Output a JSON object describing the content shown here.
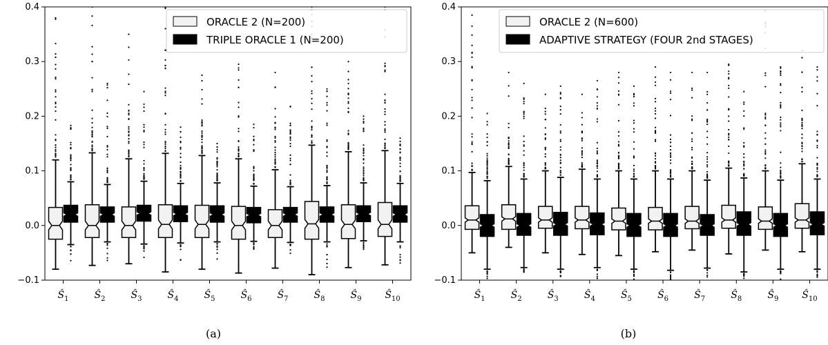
{
  "chart_data": [
    {
      "type": "box",
      "caption": "(a)",
      "categories": [
        "S1",
        "S2",
        "S3",
        "S4",
        "S5",
        "S6",
        "S7",
        "S8",
        "S9",
        "S10"
      ],
      "category_symbol": "Ŝ",
      "category_subscripts": [
        "1",
        "2",
        "3",
        "4",
        "5",
        "6",
        "7",
        "8",
        "9",
        "10"
      ],
      "ylim": [
        -0.1,
        0.4
      ],
      "yticks": [
        -0.1,
        0.0,
        0.1,
        0.2,
        0.3,
        0.4
      ],
      "ytick_labels": [
        "−0.1",
        "0.0",
        "0.1",
        "0.2",
        "0.3",
        "0.4"
      ],
      "legend_position": "top-right",
      "series": [
        {
          "name": "ORACLE 2 (N=200)",
          "fill": "#f2f2f2",
          "boxes": [
            {
              "q1": -0.025,
              "median": 0.0,
              "q3": 0.033,
              "whisker_low": -0.08,
              "whisker_high": 0.12,
              "outlier_max": 0.38,
              "notch": 0.008
            },
            {
              "q1": -0.022,
              "median": 0.0,
              "q3": 0.038,
              "whisker_low": -0.073,
              "whisker_high": 0.133,
              "outlier_max": 0.4,
              "notch": 0.008
            },
            {
              "q1": -0.022,
              "median": 0.0,
              "q3": 0.034,
              "whisker_low": -0.07,
              "whisker_high": 0.122,
              "outlier_max": 0.35,
              "notch": 0.008
            },
            {
              "q1": -0.022,
              "median": 0.002,
              "q3": 0.038,
              "whisker_low": -0.085,
              "whisker_high": 0.132,
              "outlier_max": 0.4,
              "notch": 0.008
            },
            {
              "q1": -0.022,
              "median": 0.002,
              "q3": 0.037,
              "whisker_low": -0.08,
              "whisker_high": 0.128,
              "outlier_max": 0.275,
              "notch": 0.008
            },
            {
              "q1": -0.025,
              "median": 0.0,
              "q3": 0.035,
              "whisker_low": -0.087,
              "whisker_high": 0.122,
              "outlier_max": 0.295,
              "notch": 0.008
            },
            {
              "q1": -0.022,
              "median": 0.0,
              "q3": 0.029,
              "whisker_low": -0.078,
              "whisker_high": 0.102,
              "outlier_max": 0.28,
              "notch": 0.008
            },
            {
              "q1": -0.025,
              "median": 0.003,
              "q3": 0.044,
              "whisker_low": -0.09,
              "whisker_high": 0.147,
              "outlier_max": 0.4,
              "notch": 0.008
            },
            {
              "q1": -0.024,
              "median": 0.002,
              "q3": 0.038,
              "whisker_low": -0.077,
              "whisker_high": 0.135,
              "outlier_max": 0.3,
              "notch": 0.008
            },
            {
              "q1": -0.02,
              "median": 0.002,
              "q3": 0.042,
              "whisker_low": -0.072,
              "whisker_high": 0.137,
              "outlier_max": 0.4,
              "notch": 0.008
            }
          ]
        },
        {
          "name": "TRIPLE ORACLE 1 (N=200)",
          "fill": "#000000",
          "boxes": [
            {
              "q1": 0.006,
              "median": 0.02,
              "q3": 0.037,
              "whisker_low": -0.035,
              "whisker_high": 0.08,
              "outlier_max": 0.183,
              "outlier_min": -0.07,
              "notch": 0.003
            },
            {
              "q1": 0.006,
              "median": 0.02,
              "q3": 0.034,
              "whisker_low": -0.03,
              "whisker_high": 0.075,
              "outlier_max": 0.26,
              "outlier_min": -0.07,
              "notch": 0.003
            },
            {
              "q1": 0.008,
              "median": 0.022,
              "q3": 0.037,
              "whisker_low": -0.034,
              "whisker_high": 0.081,
              "outlier_max": 0.245,
              "outlier_min": -0.06,
              "notch": 0.003
            },
            {
              "q1": 0.007,
              "median": 0.021,
              "q3": 0.036,
              "whisker_low": -0.032,
              "whisker_high": 0.077,
              "outlier_max": 0.18,
              "outlier_min": -0.075,
              "notch": 0.003
            },
            {
              "q1": 0.006,
              "median": 0.02,
              "q3": 0.036,
              "whisker_low": -0.03,
              "whisker_high": 0.078,
              "outlier_max": 0.15,
              "outlier_min": -0.065,
              "notch": 0.003
            },
            {
              "q1": 0.005,
              "median": 0.019,
              "q3": 0.033,
              "whisker_low": -0.029,
              "whisker_high": 0.072,
              "outlier_max": 0.185,
              "outlier_min": -0.06,
              "notch": 0.003
            },
            {
              "q1": 0.006,
              "median": 0.02,
              "q3": 0.033,
              "whisker_low": -0.031,
              "whisker_high": 0.071,
              "outlier_max": 0.218,
              "outlier_min": -0.055,
              "notch": 0.003
            },
            {
              "q1": 0.006,
              "median": 0.02,
              "q3": 0.034,
              "whisker_low": -0.03,
              "whisker_high": 0.073,
              "outlier_max": 0.25,
              "outlier_min": -0.08,
              "notch": 0.003
            },
            {
              "q1": 0.007,
              "median": 0.021,
              "q3": 0.036,
              "whisker_low": -0.028,
              "whisker_high": 0.078,
              "outlier_max": 0.2,
              "outlier_min": -0.065,
              "notch": 0.003
            },
            {
              "q1": 0.006,
              "median": 0.02,
              "q3": 0.036,
              "whisker_low": -0.03,
              "whisker_high": 0.077,
              "outlier_max": 0.16,
              "outlier_min": -0.09,
              "notch": 0.003
            }
          ]
        }
      ]
    },
    {
      "type": "box",
      "caption": "(b)",
      "categories": [
        "S1",
        "S2",
        "S3",
        "S4",
        "S5",
        "S6",
        "S7",
        "S8",
        "S9",
        "S10"
      ],
      "category_symbol": "Ŝ",
      "category_subscripts": [
        "1",
        "2",
        "3",
        "4",
        "5",
        "6",
        "7",
        "8",
        "9",
        "10"
      ],
      "ylim": [
        -0.1,
        0.4
      ],
      "yticks": [
        -0.1,
        0.0,
        0.1,
        0.2,
        0.3,
        0.4
      ],
      "ytick_labels": [
        "−0.1",
        "0.0",
        "0.1",
        "0.2",
        "0.3",
        "0.4"
      ],
      "legend_position": "top-right",
      "series": [
        {
          "name": "ORACLE 2 (N=600)",
          "fill": "#f2f2f2",
          "boxes": [
            {
              "q1": -0.007,
              "median": 0.01,
              "q3": 0.036,
              "whisker_low": -0.05,
              "whisker_high": 0.097,
              "outlier_max": 0.385,
              "notch": 0.004
            },
            {
              "q1": -0.007,
              "median": 0.012,
              "q3": 0.038,
              "whisker_low": -0.04,
              "whisker_high": 0.108,
              "outlier_max": 0.28,
              "notch": 0.004
            },
            {
              "q1": -0.005,
              "median": 0.01,
              "q3": 0.035,
              "whisker_low": -0.05,
              "whisker_high": 0.1,
              "outlier_max": 0.24,
              "notch": 0.004
            },
            {
              "q1": -0.006,
              "median": 0.01,
              "q3": 0.035,
              "whisker_low": -0.053,
              "whisker_high": 0.103,
              "outlier_max": 0.24,
              "notch": 0.004
            },
            {
              "q1": -0.008,
              "median": 0.008,
              "q3": 0.032,
              "whisker_low": -0.055,
              "whisker_high": 0.1,
              "outlier_max": 0.28,
              "notch": 0.004
            },
            {
              "q1": -0.008,
              "median": 0.008,
              "q3": 0.033,
              "whisker_low": -0.048,
              "whisker_high": 0.1,
              "outlier_max": 0.29,
              "notch": 0.004
            },
            {
              "q1": -0.006,
              "median": 0.008,
              "q3": 0.035,
              "whisker_low": -0.045,
              "whisker_high": 0.1,
              "outlier_max": 0.28,
              "notch": 0.004
            },
            {
              "q1": -0.005,
              "median": 0.01,
              "q3": 0.037,
              "whisker_low": -0.052,
              "whisker_high": 0.105,
              "outlier_max": 0.295,
              "notch": 0.004
            },
            {
              "q1": -0.007,
              "median": 0.008,
              "q3": 0.034,
              "whisker_low": -0.045,
              "whisker_high": 0.1,
              "outlier_max": 0.393,
              "notch": 0.004
            },
            {
              "q1": -0.005,
              "median": 0.01,
              "q3": 0.04,
              "whisker_low": -0.048,
              "whisker_high": 0.113,
              "outlier_max": 0.32,
              "notch": 0.004
            }
          ]
        },
        {
          "name": "ADAPTIVE STRATEGY (FOUR 2nd STAGES)",
          "fill": "#000000",
          "boxes": [
            {
              "q1": -0.02,
              "median": 0.0,
              "q3": 0.02,
              "whisker_low": -0.08,
              "whisker_high": 0.082,
              "outlier_max": 0.205,
              "outlier_min": -0.1,
              "notch": 0.003
            },
            {
              "q1": -0.018,
              "median": 0.0,
              "q3": 0.022,
              "whisker_low": -0.077,
              "whisker_high": 0.085,
              "outlier_max": 0.26,
              "outlier_min": -0.1,
              "notch": 0.003
            },
            {
              "q1": -0.018,
              "median": 0.002,
              "q3": 0.024,
              "whisker_low": -0.08,
              "whisker_high": 0.088,
              "outlier_max": 0.255,
              "outlier_min": -0.1,
              "notch": 0.003
            },
            {
              "q1": -0.017,
              "median": 0.002,
              "q3": 0.023,
              "whisker_low": -0.077,
              "whisker_high": 0.085,
              "outlier_max": 0.265,
              "outlier_min": -0.1,
              "notch": 0.003
            },
            {
              "q1": -0.02,
              "median": 0.0,
              "q3": 0.022,
              "whisker_low": -0.08,
              "whisker_high": 0.085,
              "outlier_max": 0.255,
              "outlier_min": -0.1,
              "notch": 0.003
            },
            {
              "q1": -0.02,
              "median": 0.0,
              "q3": 0.022,
              "whisker_low": -0.082,
              "whisker_high": 0.085,
              "outlier_max": 0.28,
              "outlier_min": -0.1,
              "notch": 0.003
            },
            {
              "q1": -0.018,
              "median": 0.0,
              "q3": 0.02,
              "whisker_low": -0.078,
              "whisker_high": 0.083,
              "outlier_max": 0.28,
              "outlier_min": -0.1,
              "notch": 0.003
            },
            {
              "q1": -0.018,
              "median": 0.002,
              "q3": 0.025,
              "whisker_low": -0.085,
              "whisker_high": 0.087,
              "outlier_max": 0.245,
              "outlier_min": -0.1,
              "notch": 0.003
            },
            {
              "q1": -0.02,
              "median": 0.0,
              "q3": 0.022,
              "whisker_low": -0.08,
              "whisker_high": 0.083,
              "outlier_max": 0.29,
              "outlier_min": -0.1,
              "notch": 0.003
            },
            {
              "q1": -0.017,
              "median": 0.002,
              "q3": 0.025,
              "whisker_low": -0.08,
              "whisker_high": 0.085,
              "outlier_max": 0.29,
              "outlier_min": -0.1,
              "notch": 0.003
            }
          ]
        }
      ]
    }
  ]
}
